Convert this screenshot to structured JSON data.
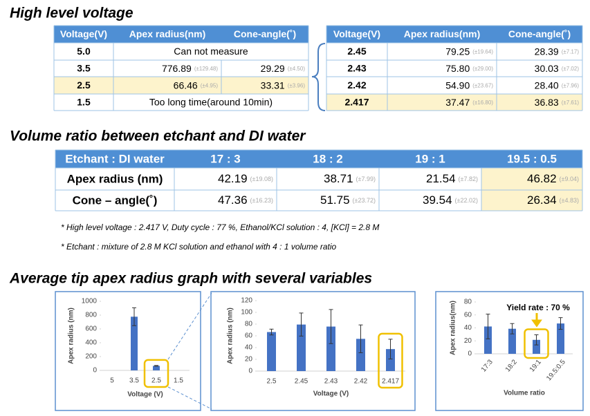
{
  "sections": [
    "High level voltage",
    "Volume ratio between etchant and DI water",
    "Average tip apex radius graph with several variables"
  ],
  "tables": [
    {
      "header": [
        "Voltage(V)",
        "Apex radius(nm)",
        "Cone-angle(˚)"
      ],
      "rows": [
        [
          "5.0",
          "Can not measure"
        ],
        [
          "3.5",
          [
            "776.89",
            "(±129.48)"
          ],
          [
            "29.29",
            "(±4.50)"
          ]
        ],
        [
          "2.5",
          [
            "66.46",
            "(±4.95)"
          ],
          [
            "33.31",
            "(±3.96)"
          ]
        ],
        [
          "1.5",
          "Too long time(around 10min)"
        ]
      ],
      "highlight_row": 2
    },
    {
      "header": [
        "Voltage(V)",
        "Apex radius(nm)",
        "Cone-angle(˚)"
      ],
      "rows": [
        [
          "2.45",
          [
            "79.25",
            "(±19.64)"
          ],
          [
            "28.39",
            "(±7.17)"
          ]
        ],
        [
          "2.43",
          [
            "75.80",
            "(±29.00)"
          ],
          [
            "30.03",
            "(±7.02)"
          ]
        ],
        [
          "2.42",
          [
            "54.90",
            "(±23.67)"
          ],
          [
            "28.40",
            "(±7.96)"
          ]
        ],
        [
          "2.417",
          [
            "37.47",
            "(±16.80)"
          ],
          [
            "36.83",
            "(±7.61)"
          ]
        ]
      ],
      "highlight_row": 3
    },
    {
      "header": [
        "Etchant : DI water",
        "17 : 3",
        "18 : 2",
        "19 : 1",
        "19.5 : 0.5"
      ],
      "rows": [
        [
          "Apex radius (nm)",
          [
            "42.19",
            "(±19.08)"
          ],
          [
            "38.71",
            "(±7.99)"
          ],
          [
            "21.54",
            "(±7.82)"
          ],
          [
            "46.82",
            "(±9.04)"
          ]
        ],
        [
          "Cone – angle(˚)",
          [
            "47.36",
            "(±16.23)"
          ],
          [
            "51.75",
            "(±23.72)"
          ],
          [
            "39.54",
            "(±22.02)"
          ],
          [
            "26.34",
            "(±4.83)"
          ]
        ]
      ],
      "highlight_col": 3
    }
  ],
  "notes": [
    "* High level voltage : 2.417 V, Duty cycle : 77 %, Ethanol/KCl solution : 4, [KCl] = 2.8 M",
    "* Etchant : mixture of 2.8 M KCl solution and ethanol with 4 : 1 volume ratio"
  ],
  "chart_data": [
    {
      "type": "bar",
      "x_label": "Voltage (V)",
      "y_label": "Apex radius (nm)",
      "categories": [
        "5",
        "3.5",
        "2.5",
        "1.5"
      ],
      "values": [
        null,
        776.89,
        66.46,
        null
      ],
      "errors": [
        null,
        129.48,
        4.95,
        null
      ],
      "color": "#4472c4",
      "ylim": [
        0,
        1000
      ],
      "yticks": [
        0,
        200,
        400,
        600,
        800,
        1000
      ],
      "highlight": 2
    },
    {
      "type": "bar",
      "x_label": "Voltage (V)",
      "y_label": "Apex radius (nm)",
      "categories": [
        "2.5",
        "2.45",
        "2.43",
        "2.42",
        "2.417"
      ],
      "values": [
        66.46,
        79.25,
        75.8,
        54.9,
        37.47
      ],
      "errors": [
        4.95,
        19.64,
        29.0,
        23.67,
        16.8
      ],
      "color": "#4472c4",
      "ylim": [
        0,
        120
      ],
      "yticks": [
        0,
        20,
        40,
        60,
        80,
        100,
        120
      ],
      "highlight": 4
    },
    {
      "type": "bar",
      "x_label": "Volume ratio",
      "y_label": "Apex radius(nm)",
      "annotation": "Yield rate : 70 %",
      "categories": [
        "17:3",
        "18:2",
        "19:1",
        "19.5:0.5"
      ],
      "values": [
        42.19,
        38.71,
        21.54,
        46.82
      ],
      "errors": [
        19.08,
        7.99,
        7.82,
        9.04
      ],
      "color": "#4472c4",
      "ylim": [
        0,
        80
      ],
      "yticks": [
        0,
        20,
        40,
        60,
        80
      ],
      "highlight": 2
    }
  ]
}
